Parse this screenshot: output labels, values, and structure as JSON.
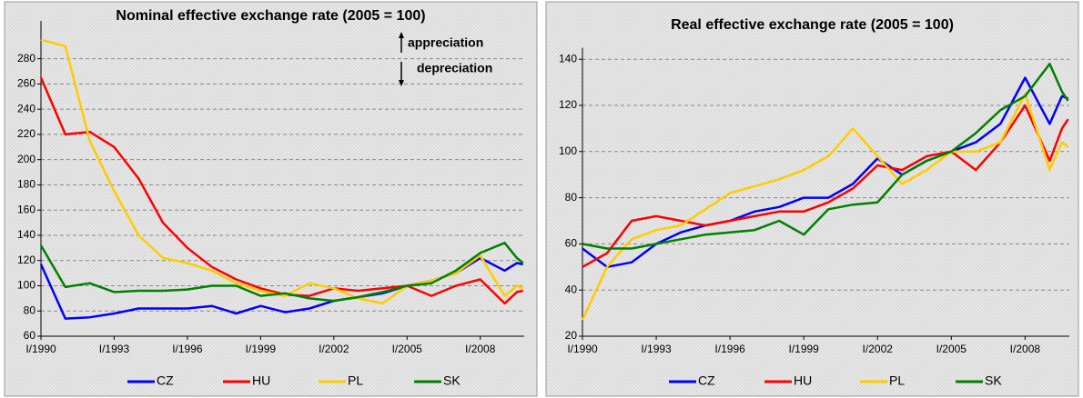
{
  "chart_data": [
    {
      "type": "line",
      "title": "Nominal effective exchange rate (2005 = 100)",
      "annotations": [
        "appreciation",
        "depreciation"
      ],
      "x": [
        1990,
        1991,
        1992,
        1993,
        1994,
        1995,
        1996,
        1997,
        1998,
        1999,
        2000,
        2001,
        2002,
        2003,
        2004,
        2005,
        2006,
        2007,
        2008,
        2009,
        2009.5,
        2009.75
      ],
      "xlim": [
        1990,
        2009.8
      ],
      "xticks": [
        {
          "value": 1990,
          "label": "I/1990"
        },
        {
          "value": 1993,
          "label": "I/1993"
        },
        {
          "value": 1996,
          "label": "I/1996"
        },
        {
          "value": 1999,
          "label": "I/1999"
        },
        {
          "value": 2002,
          "label": "I/2002"
        },
        {
          "value": 2005,
          "label": "I/2005"
        },
        {
          "value": 2008,
          "label": "I/2008"
        }
      ],
      "ylim": [
        60,
        310
      ],
      "yticks": [
        60,
        80,
        100,
        120,
        140,
        160,
        180,
        200,
        220,
        240,
        260,
        280
      ],
      "grid": true,
      "series": [
        {
          "name": "CZ",
          "color": "#0000ff",
          "values": [
            117,
            74,
            75,
            78,
            82,
            82,
            82,
            84,
            78,
            84,
            79,
            82,
            88,
            91,
            94,
            100,
            104,
            110,
            122,
            112,
            118,
            117
          ]
        },
        {
          "name": "HU",
          "color": "#ff0000",
          "values": [
            265,
            220,
            222,
            210,
            185,
            150,
            130,
            115,
            105,
            98,
            93,
            92,
            98,
            96,
            98,
            100,
            92,
            100,
            105,
            86,
            95,
            96
          ]
        },
        {
          "name": "PL",
          "color": "#ffcc00",
          "values": [
            295,
            290,
            215,
            175,
            140,
            122,
            118,
            112,
            102,
            96,
            92,
            102,
            98,
            90,
            86,
            100,
            104,
            110,
            124,
            92,
            100,
            98
          ]
        },
        {
          "name": "SK",
          "color": "#008000",
          "values": [
            132,
            99,
            102,
            95,
            96,
            96,
            97,
            100,
            100,
            92,
            94,
            90,
            88,
            91,
            95,
            100,
            102,
            112,
            126,
            134,
            122,
            118
          ]
        }
      ]
    },
    {
      "type": "line",
      "title": "Real effective exchange rate (2005 = 100)",
      "x": [
        1990,
        1991,
        1992,
        1993,
        1994,
        1995,
        1996,
        1997,
        1998,
        1999,
        2000,
        2001,
        2002,
        2003,
        2004,
        2005,
        2006,
        2007,
        2008,
        2009,
        2009.5,
        2009.75
      ],
      "xlim": [
        1990,
        2009.8
      ],
      "xticks": [
        {
          "value": 1990,
          "label": "I/1990"
        },
        {
          "value": 1993,
          "label": "I/1993"
        },
        {
          "value": 1996,
          "label": "I/1996"
        },
        {
          "value": 1999,
          "label": "I/1999"
        },
        {
          "value": 2002,
          "label": "I/2002"
        },
        {
          "value": 2005,
          "label": "I/2005"
        },
        {
          "value": 2008,
          "label": "I/2008"
        }
      ],
      "ylim": [
        20,
        145
      ],
      "yticks": [
        20,
        40,
        60,
        80,
        100,
        120,
        140
      ],
      "grid": true,
      "series": [
        {
          "name": "CZ",
          "color": "#0000ff",
          "values": [
            58,
            50,
            52,
            60,
            65,
            68,
            70,
            74,
            76,
            80,
            80,
            86,
            97,
            90,
            96,
            100,
            104,
            112,
            132,
            112,
            124,
            123
          ]
        },
        {
          "name": "HU",
          "color": "#ff0000",
          "values": [
            50,
            56,
            70,
            72,
            70,
            68,
            70,
            72,
            74,
            74,
            78,
            84,
            94,
            92,
            98,
            100,
            92,
            104,
            120,
            96,
            110,
            114
          ]
        },
        {
          "name": "PL",
          "color": "#ffcc00",
          "values": [
            27,
            50,
            62,
            66,
            68,
            75,
            82,
            85,
            88,
            92,
            98,
            110,
            98,
            86,
            92,
            100,
            100,
            104,
            125,
            92,
            104,
            102
          ]
        },
        {
          "name": "SK",
          "color": "#008000",
          "values": [
            60,
            58,
            58,
            60,
            62,
            64,
            65,
            66,
            70,
            64,
            75,
            77,
            78,
            90,
            96,
            100,
            108,
            118,
            124,
            138,
            126,
            122
          ]
        }
      ]
    }
  ]
}
